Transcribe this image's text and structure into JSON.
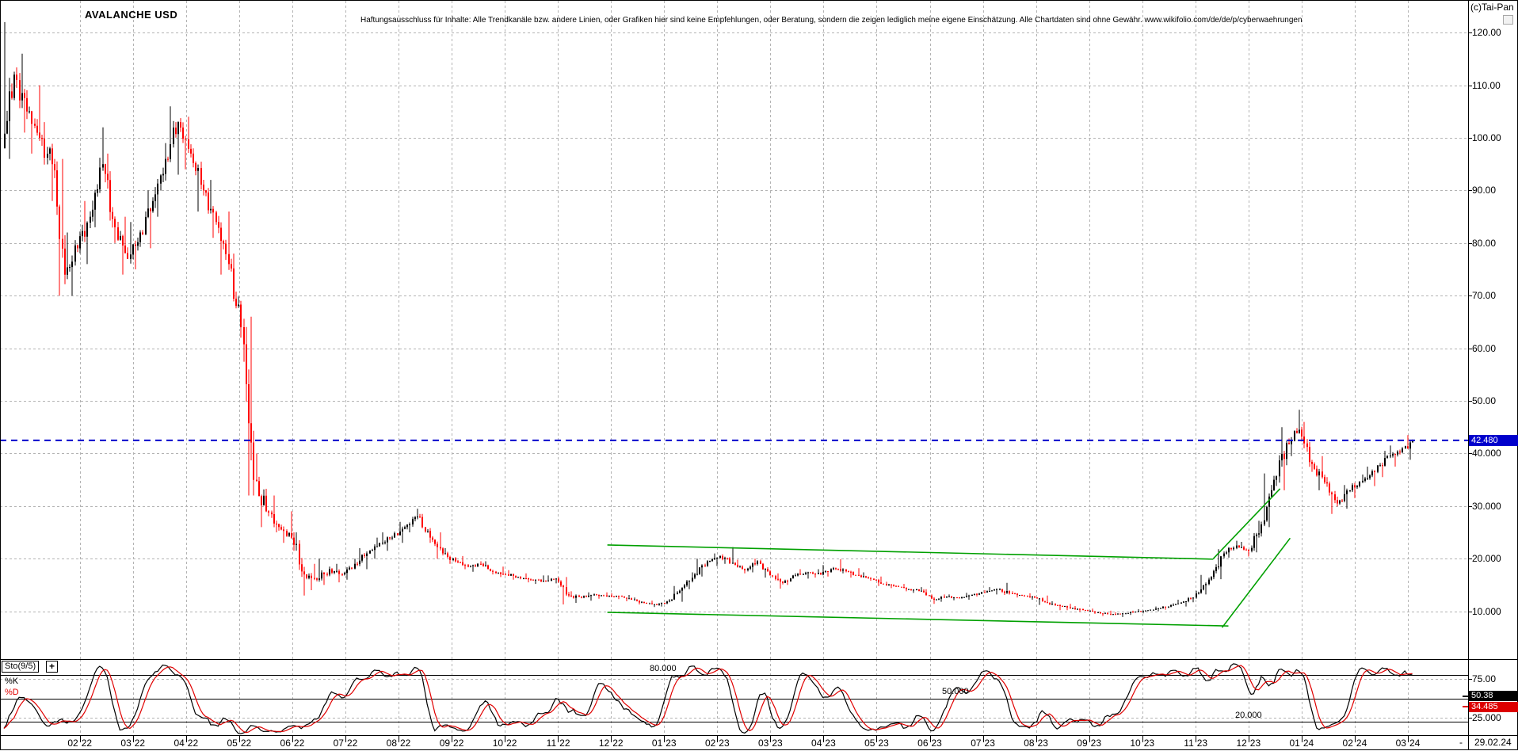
{
  "header": {
    "disclaimer": "Haftungsausschluss für Inhalte: Alle Trendkanäle bzw. andere Linien, oder Grafiken hier sind keine Empfehlungen, oder Beratung, sondern die zeigen lediglich meine eigene Einschätzung. Alle Chartdaten sind ohne Gewähr.  www.wikifolio.com/de/de/p/cyberwaehrungen",
    "copyright": "(c)Tai-Pan"
  },
  "footer": {
    "dash": "-"
  },
  "colors": {
    "grid": "#b3b3b3",
    "up_candle": "#000000",
    "down_candle": "#ff0000",
    "trendline": "#00a000",
    "ref_line": "#0000cc",
    "price_badge_bg": "#0000cc",
    "k_badge_bg": "#000000",
    "d_badge_bg": "#dd0000"
  },
  "chart_data": {
    "type": "candlestick",
    "title": "AVALANCHE USD",
    "last_date": "29.02.24",
    "last_price": 42.48,
    "last_price_label": "42.480",
    "y_axis": [
      {
        "v": 120,
        "t": "120.00"
      },
      {
        "v": 110,
        "t": "110.00"
      },
      {
        "v": 100,
        "t": "100.00"
      },
      {
        "v": 90,
        "t": "90.00"
      },
      {
        "v": 80,
        "t": "80.00"
      },
      {
        "v": 70,
        "t": "70.00"
      },
      {
        "v": 60,
        "t": "60.00"
      },
      {
        "v": 50,
        "t": "50.00"
      },
      {
        "v": 40,
        "t": "40.000"
      },
      {
        "v": 30,
        "t": "30.000"
      },
      {
        "v": 20,
        "t": "20.000"
      },
      {
        "v": 10,
        "t": "10.000"
      }
    ],
    "x_ticks": [
      "02/22",
      "03/22",
      "04/22",
      "05/22",
      "06/22",
      "07/22",
      "08/22",
      "09/22",
      "10/22",
      "11/22",
      "12/22",
      "01/23",
      "02/23",
      "03/23",
      "04/23",
      "05/23",
      "06/23",
      "07/23",
      "08/23",
      "09/23",
      "10/23",
      "11/23",
      "12/23",
      "01/24",
      "02/24",
      "03/24"
    ],
    "weekly_candles": [
      [
        98,
        122,
        96,
        112
      ],
      [
        112,
        116,
        101,
        105
      ],
      [
        105,
        110,
        97,
        100
      ],
      [
        100,
        103,
        88,
        95
      ],
      [
        95,
        96,
        70,
        74
      ],
      [
        74,
        82,
        70,
        79
      ],
      [
        79,
        88,
        76,
        85
      ],
      [
        85,
        102,
        83,
        95
      ],
      [
        95,
        97,
        80,
        83
      ],
      [
        83,
        85,
        74,
        77
      ],
      [
        77,
        84,
        75,
        82
      ],
      [
        82,
        90,
        79,
        88
      ],
      [
        88,
        99,
        85,
        96
      ],
      [
        96,
        106,
        93,
        103
      ],
      [
        103,
        104,
        94,
        97
      ],
      [
        97,
        98,
        86,
        90
      ],
      [
        90,
        92,
        81,
        84
      ],
      [
        84,
        86,
        74,
        76
      ],
      [
        76,
        78,
        62,
        64
      ],
      [
        64,
        66,
        32,
        35
      ],
      [
        35,
        40,
        26,
        29
      ],
      [
        29,
        32,
        25,
        26
      ],
      [
        26,
        29,
        23,
        24
      ],
      [
        24,
        25,
        13,
        17
      ],
      [
        17,
        19,
        14,
        16
      ],
      [
        16,
        20,
        15,
        18
      ],
      [
        18,
        19,
        15.5,
        17
      ],
      [
        17,
        20,
        16,
        19
      ],
      [
        19,
        22,
        18,
        21
      ],
      [
        21,
        24,
        20,
        23
      ],
      [
        23,
        25,
        21.5,
        24
      ],
      [
        24,
        27,
        23,
        26
      ],
      [
        26,
        29.5,
        25,
        28
      ],
      [
        28,
        28.5,
        23,
        24
      ],
      [
        24,
        25,
        20,
        21
      ],
      [
        21,
        22,
        19,
        19.5
      ],
      [
        19.5,
        20.5,
        18,
        18.5
      ],
      [
        18.5,
        19.5,
        17.5,
        19
      ],
      [
        19,
        19.5,
        17,
        17.5
      ],
      [
        17.5,
        18.5,
        16.5,
        17
      ],
      [
        17,
        17.8,
        16,
        16.5
      ],
      [
        16.5,
        17.2,
        15.5,
        16
      ],
      [
        16,
        16.8,
        15.2,
        15.8
      ],
      [
        15.8,
        16.8,
        15.3,
        16.2
      ],
      [
        16.2,
        16.5,
        11.3,
        13
      ],
      [
        13,
        13.8,
        11.6,
        12.6
      ],
      [
        12.6,
        13.6,
        12,
        13.2
      ],
      [
        13.2,
        13.6,
        12.4,
        12.8
      ],
      [
        12.8,
        13.4,
        12.3,
        12.9
      ],
      [
        12.9,
        13.1,
        11.9,
        12.2
      ],
      [
        12.2,
        12.6,
        11.3,
        11.6
      ],
      [
        11.6,
        12,
        10.8,
        11.2
      ],
      [
        11.2,
        12.3,
        10.9,
        12
      ],
      [
        12,
        14.8,
        11.8,
        14.5
      ],
      [
        14.5,
        17.4,
        14.2,
        17
      ],
      [
        17,
        20,
        16.6,
        19.5
      ],
      [
        19.5,
        21,
        18.6,
        20.5
      ],
      [
        20.5,
        22.2,
        19,
        19.2
      ],
      [
        19.2,
        19.8,
        17.2,
        17.8
      ],
      [
        17.8,
        20,
        17.4,
        19.5
      ],
      [
        19.5,
        19.8,
        16.4,
        16.8
      ],
      [
        16.8,
        17.2,
        14.3,
        15.4
      ],
      [
        15.4,
        17.2,
        15,
        16.8
      ],
      [
        16.8,
        18,
        16.2,
        17.4
      ],
      [
        17.4,
        18,
        16.4,
        17
      ],
      [
        17,
        18.8,
        16.6,
        18.2
      ],
      [
        18.2,
        19.9,
        17.2,
        17.6
      ],
      [
        17.6,
        18.2,
        16.4,
        16.8
      ],
      [
        16.8,
        17.4,
        15.8,
        16.2
      ],
      [
        16.2,
        16.6,
        14.8,
        15.2
      ],
      [
        15.2,
        15.6,
        14.4,
        14.8
      ],
      [
        14.8,
        15.2,
        13.8,
        14.2
      ],
      [
        14.2,
        14.6,
        13.5,
        13.9
      ],
      [
        13.9,
        14.2,
        11.4,
        12.2
      ],
      [
        12.2,
        13.2,
        11.8,
        12.8
      ],
      [
        12.8,
        13.2,
        12.1,
        12.5
      ],
      [
        12.5,
        13.5,
        12.2,
        13.1
      ],
      [
        13.1,
        14,
        12.8,
        13.6
      ],
      [
        13.6,
        14.6,
        13.2,
        14.2
      ],
      [
        14.2,
        15.4,
        13.1,
        13.4
      ],
      [
        13.4,
        13.8,
        12.6,
        13
      ],
      [
        13,
        13.4,
        12.2,
        12.6
      ],
      [
        12.6,
        13,
        11.2,
        11.6
      ],
      [
        11.6,
        11.9,
        10.2,
        11
      ],
      [
        11,
        11.4,
        10.2,
        10.6
      ],
      [
        10.6,
        11,
        9.9,
        10.2
      ],
      [
        10.2,
        10.5,
        9.5,
        9.8
      ],
      [
        9.8,
        10.1,
        9.1,
        9.4
      ],
      [
        9.4,
        9.8,
        8.9,
        9.6
      ],
      [
        9.6,
        10.1,
        9.3,
        9.9
      ],
      [
        9.9,
        10.4,
        9.6,
        10.2
      ],
      [
        10.2,
        10.9,
        10,
        10.6
      ],
      [
        10.6,
        11.5,
        10.3,
        11.2
      ],
      [
        11.2,
        12.2,
        10.9,
        11.9
      ],
      [
        11.9,
        13.9,
        11.7,
        13.5
      ],
      [
        13.5,
        16.9,
        13.2,
        16.5
      ],
      [
        16.5,
        21.8,
        16.1,
        21
      ],
      [
        21,
        23.4,
        20.2,
        22.5
      ],
      [
        22.5,
        23.2,
        20.4,
        21.5
      ],
      [
        21.5,
        27.2,
        21.2,
        26.5
      ],
      [
        26.5,
        36.2,
        26,
        35
      ],
      [
        35,
        45,
        33,
        42
      ],
      [
        42,
        48.3,
        39.5,
        44.5
      ],
      [
        44.5,
        46,
        36.5,
        38
      ],
      [
        38,
        39.5,
        33,
        34.5
      ],
      [
        34.5,
        35.5,
        28.5,
        30.5
      ],
      [
        30.5,
        34,
        29.5,
        33
      ],
      [
        33,
        36,
        31.5,
        34.8
      ],
      [
        34.8,
        37.5,
        33.8,
        36.5
      ],
      [
        36.5,
        40.5,
        35.5,
        39.5
      ],
      [
        39.5,
        41.5,
        37.5,
        40.2
      ],
      [
        40.2,
        43.5,
        38.8,
        42.48
      ]
    ],
    "trendlines": [
      {
        "name": "channel-upper",
        "w1": 47.9,
        "p1": 22.6,
        "w2": 96.0,
        "p2": 19.9
      },
      {
        "name": "channel-lower",
        "w1": 47.9,
        "p1": 9.8,
        "w2": 97.2,
        "p2": 7.2
      },
      {
        "name": "rising-channel-upper",
        "w1": 96.0,
        "p1": 20.0,
        "w2": 101.3,
        "p2": 33.3
      },
      {
        "name": "rising-channel-lower",
        "w1": 96.7,
        "p1": 6.9,
        "w2": 102.1,
        "p2": 23.9
      }
    ],
    "indicator": {
      "name": "Sto(9/5)",
      "add_label": "+",
      "k_label": "%K",
      "d_label": "%D",
      "k_last": "50.38",
      "d_last": "34.485",
      "k_last_value": 50.38,
      "d_last_value": 34.485,
      "solid_levels": [
        80,
        50,
        20
      ],
      "dashed_levels": [
        75,
        25
      ],
      "level_labels": [
        {
          "text": "80.000",
          "x": 820,
          "y": 837
        },
        {
          "text": "50.000",
          "x": 1189,
          "y": 866
        },
        {
          "text": "20.000",
          "x": 1559,
          "y": 896
        }
      ],
      "right_axis": [
        {
          "v": 75,
          "t": "75.00"
        },
        {
          "v": 25,
          "t": "25.000"
        }
      ]
    }
  }
}
